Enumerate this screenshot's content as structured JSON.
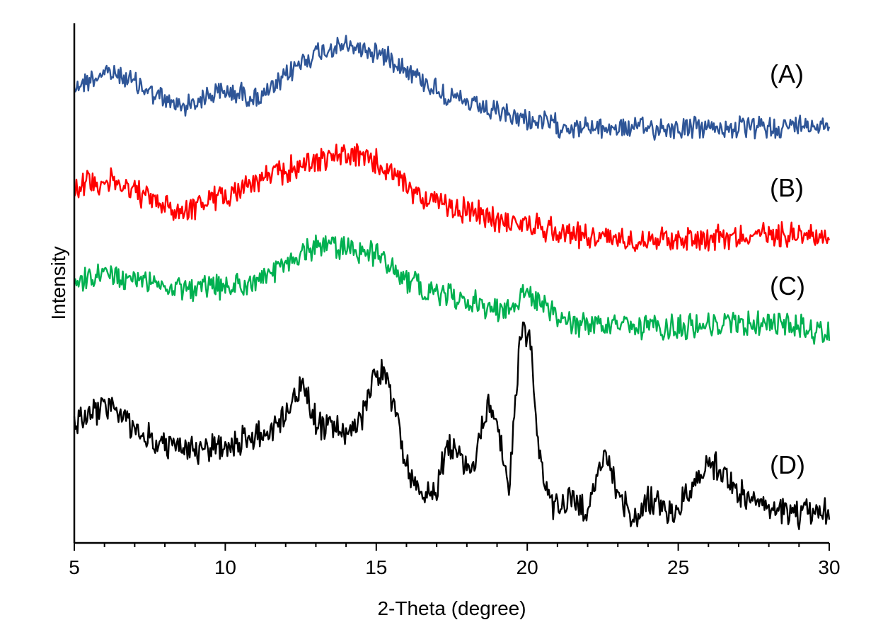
{
  "chart_data": {
    "type": "line",
    "title": "",
    "xlabel": "2-Theta (degree)",
    "ylabel": "Intensity",
    "xlim": [
      5,
      30
    ],
    "x_ticks": [
      5,
      10,
      15,
      20,
      25,
      30
    ],
    "y_tick_labels": false,
    "grid": false,
    "legend": "none",
    "stacked_offset": true,
    "colors": {
      "A": "#2e5597",
      "B": "#ff0000",
      "C": "#00b050",
      "D": "#000000"
    },
    "series": [
      {
        "label": "(A)",
        "color_key": "A",
        "profile": [
          [
            5,
            0.55
          ],
          [
            5.5,
            0.6
          ],
          [
            6,
            0.66
          ],
          [
            6.5,
            0.64
          ],
          [
            7,
            0.58
          ],
          [
            7.5,
            0.5
          ],
          [
            8,
            0.43
          ],
          [
            8.5,
            0.38
          ],
          [
            9,
            0.42
          ],
          [
            9.5,
            0.48
          ],
          [
            10,
            0.5
          ],
          [
            10.5,
            0.49
          ],
          [
            11,
            0.45
          ],
          [
            11.5,
            0.5
          ],
          [
            12,
            0.62
          ],
          [
            12.5,
            0.75
          ],
          [
            13,
            0.82
          ],
          [
            13.5,
            0.86
          ],
          [
            14,
            0.88
          ],
          [
            14.5,
            0.86
          ],
          [
            15,
            0.83
          ],
          [
            15.5,
            0.78
          ],
          [
            16,
            0.7
          ],
          [
            16.5,
            0.6
          ],
          [
            17,
            0.52
          ],
          [
            17.5,
            0.45
          ],
          [
            18,
            0.4
          ],
          [
            18.5,
            0.36
          ],
          [
            19,
            0.32
          ],
          [
            20,
            0.27
          ],
          [
            21,
            0.22
          ],
          [
            22,
            0.2
          ],
          [
            23,
            0.2
          ],
          [
            24,
            0.2
          ],
          [
            25,
            0.2
          ],
          [
            26,
            0.2
          ],
          [
            27,
            0.2
          ],
          [
            28,
            0.2
          ],
          [
            29,
            0.22
          ],
          [
            30,
            0.24
          ]
        ]
      },
      {
        "label": "(B)",
        "color_key": "B",
        "profile": [
          [
            5,
            0.55
          ],
          [
            5.5,
            0.6
          ],
          [
            6,
            0.6
          ],
          [
            6.5,
            0.58
          ],
          [
            7,
            0.53
          ],
          [
            7.5,
            0.47
          ],
          [
            8,
            0.42
          ],
          [
            8.5,
            0.38
          ],
          [
            9,
            0.42
          ],
          [
            9.5,
            0.46
          ],
          [
            10,
            0.5
          ],
          [
            10.5,
            0.55
          ],
          [
            11,
            0.6
          ],
          [
            11.5,
            0.64
          ],
          [
            12,
            0.68
          ],
          [
            12.5,
            0.72
          ],
          [
            13,
            0.76
          ],
          [
            13.5,
            0.78
          ],
          [
            14,
            0.8
          ],
          [
            14.5,
            0.78
          ],
          [
            15,
            0.74
          ],
          [
            15.5,
            0.66
          ],
          [
            16,
            0.56
          ],
          [
            16.5,
            0.5
          ],
          [
            17,
            0.44
          ],
          [
            18,
            0.38
          ],
          [
            19,
            0.32
          ],
          [
            20,
            0.28
          ],
          [
            21,
            0.24
          ],
          [
            22,
            0.2
          ],
          [
            23,
            0.18
          ],
          [
            24,
            0.18
          ],
          [
            25,
            0.18
          ],
          [
            26,
            0.19
          ],
          [
            27,
            0.2
          ],
          [
            28,
            0.21
          ],
          [
            29,
            0.22
          ],
          [
            30,
            0.2
          ]
        ]
      },
      {
        "label": "(C)",
        "color_key": "C",
        "profile": [
          [
            5,
            0.48
          ],
          [
            6,
            0.55
          ],
          [
            7,
            0.52
          ],
          [
            8,
            0.48
          ],
          [
            9,
            0.45
          ],
          [
            10,
            0.46
          ],
          [
            11,
            0.5
          ],
          [
            11.5,
            0.55
          ],
          [
            12,
            0.62
          ],
          [
            12.5,
            0.7
          ],
          [
            13,
            0.76
          ],
          [
            13.5,
            0.77
          ],
          [
            14,
            0.74
          ],
          [
            14.5,
            0.72
          ],
          [
            15,
            0.7
          ],
          [
            15.5,
            0.62
          ],
          [
            16,
            0.52
          ],
          [
            16.5,
            0.46
          ],
          [
            17,
            0.42
          ],
          [
            17.5,
            0.4
          ],
          [
            18,
            0.36
          ],
          [
            18.5,
            0.34
          ],
          [
            19,
            0.3
          ],
          [
            19.5,
            0.34
          ],
          [
            20,
            0.42
          ],
          [
            20.5,
            0.36
          ],
          [
            21,
            0.22
          ],
          [
            22,
            0.2
          ],
          [
            23,
            0.18
          ],
          [
            24,
            0.17
          ],
          [
            25,
            0.17
          ],
          [
            26,
            0.2
          ],
          [
            27,
            0.2
          ],
          [
            28,
            0.2
          ],
          [
            29,
            0.18
          ],
          [
            30,
            0.14
          ]
        ]
      },
      {
        "label": "(D)",
        "color_key": "D",
        "profile": [
          [
            5,
            0.5
          ],
          [
            6,
            0.58
          ],
          [
            6.5,
            0.54
          ],
          [
            7,
            0.46
          ],
          [
            8,
            0.4
          ],
          [
            9,
            0.38
          ],
          [
            10,
            0.4
          ],
          [
            11,
            0.44
          ],
          [
            11.8,
            0.5
          ],
          [
            12.3,
            0.62
          ],
          [
            12.6,
            0.66
          ],
          [
            13,
            0.5
          ],
          [
            14,
            0.46
          ],
          [
            14.5,
            0.5
          ],
          [
            15,
            0.74
          ],
          [
            15.3,
            0.7
          ],
          [
            15.6,
            0.58
          ],
          [
            16,
            0.3
          ],
          [
            16.5,
            0.2
          ],
          [
            17,
            0.22
          ],
          [
            17.4,
            0.42
          ],
          [
            17.7,
            0.36
          ],
          [
            18.2,
            0.3
          ],
          [
            18.7,
            0.58
          ],
          [
            19,
            0.5
          ],
          [
            19.4,
            0.22
          ],
          [
            19.8,
            0.92
          ],
          [
            20.1,
            0.85
          ],
          [
            20.4,
            0.35
          ],
          [
            20.8,
            0.14
          ],
          [
            21.5,
            0.16
          ],
          [
            22,
            0.12
          ],
          [
            22.6,
            0.38
          ],
          [
            23,
            0.2
          ],
          [
            23.5,
            0.08
          ],
          [
            24,
            0.18
          ],
          [
            24.6,
            0.1
          ],
          [
            25,
            0.12
          ],
          [
            25.6,
            0.26
          ],
          [
            26,
            0.34
          ],
          [
            26.5,
            0.28
          ],
          [
            27,
            0.2
          ],
          [
            28,
            0.12
          ],
          [
            29,
            0.1
          ],
          [
            30,
            0.12
          ]
        ]
      }
    ]
  }
}
